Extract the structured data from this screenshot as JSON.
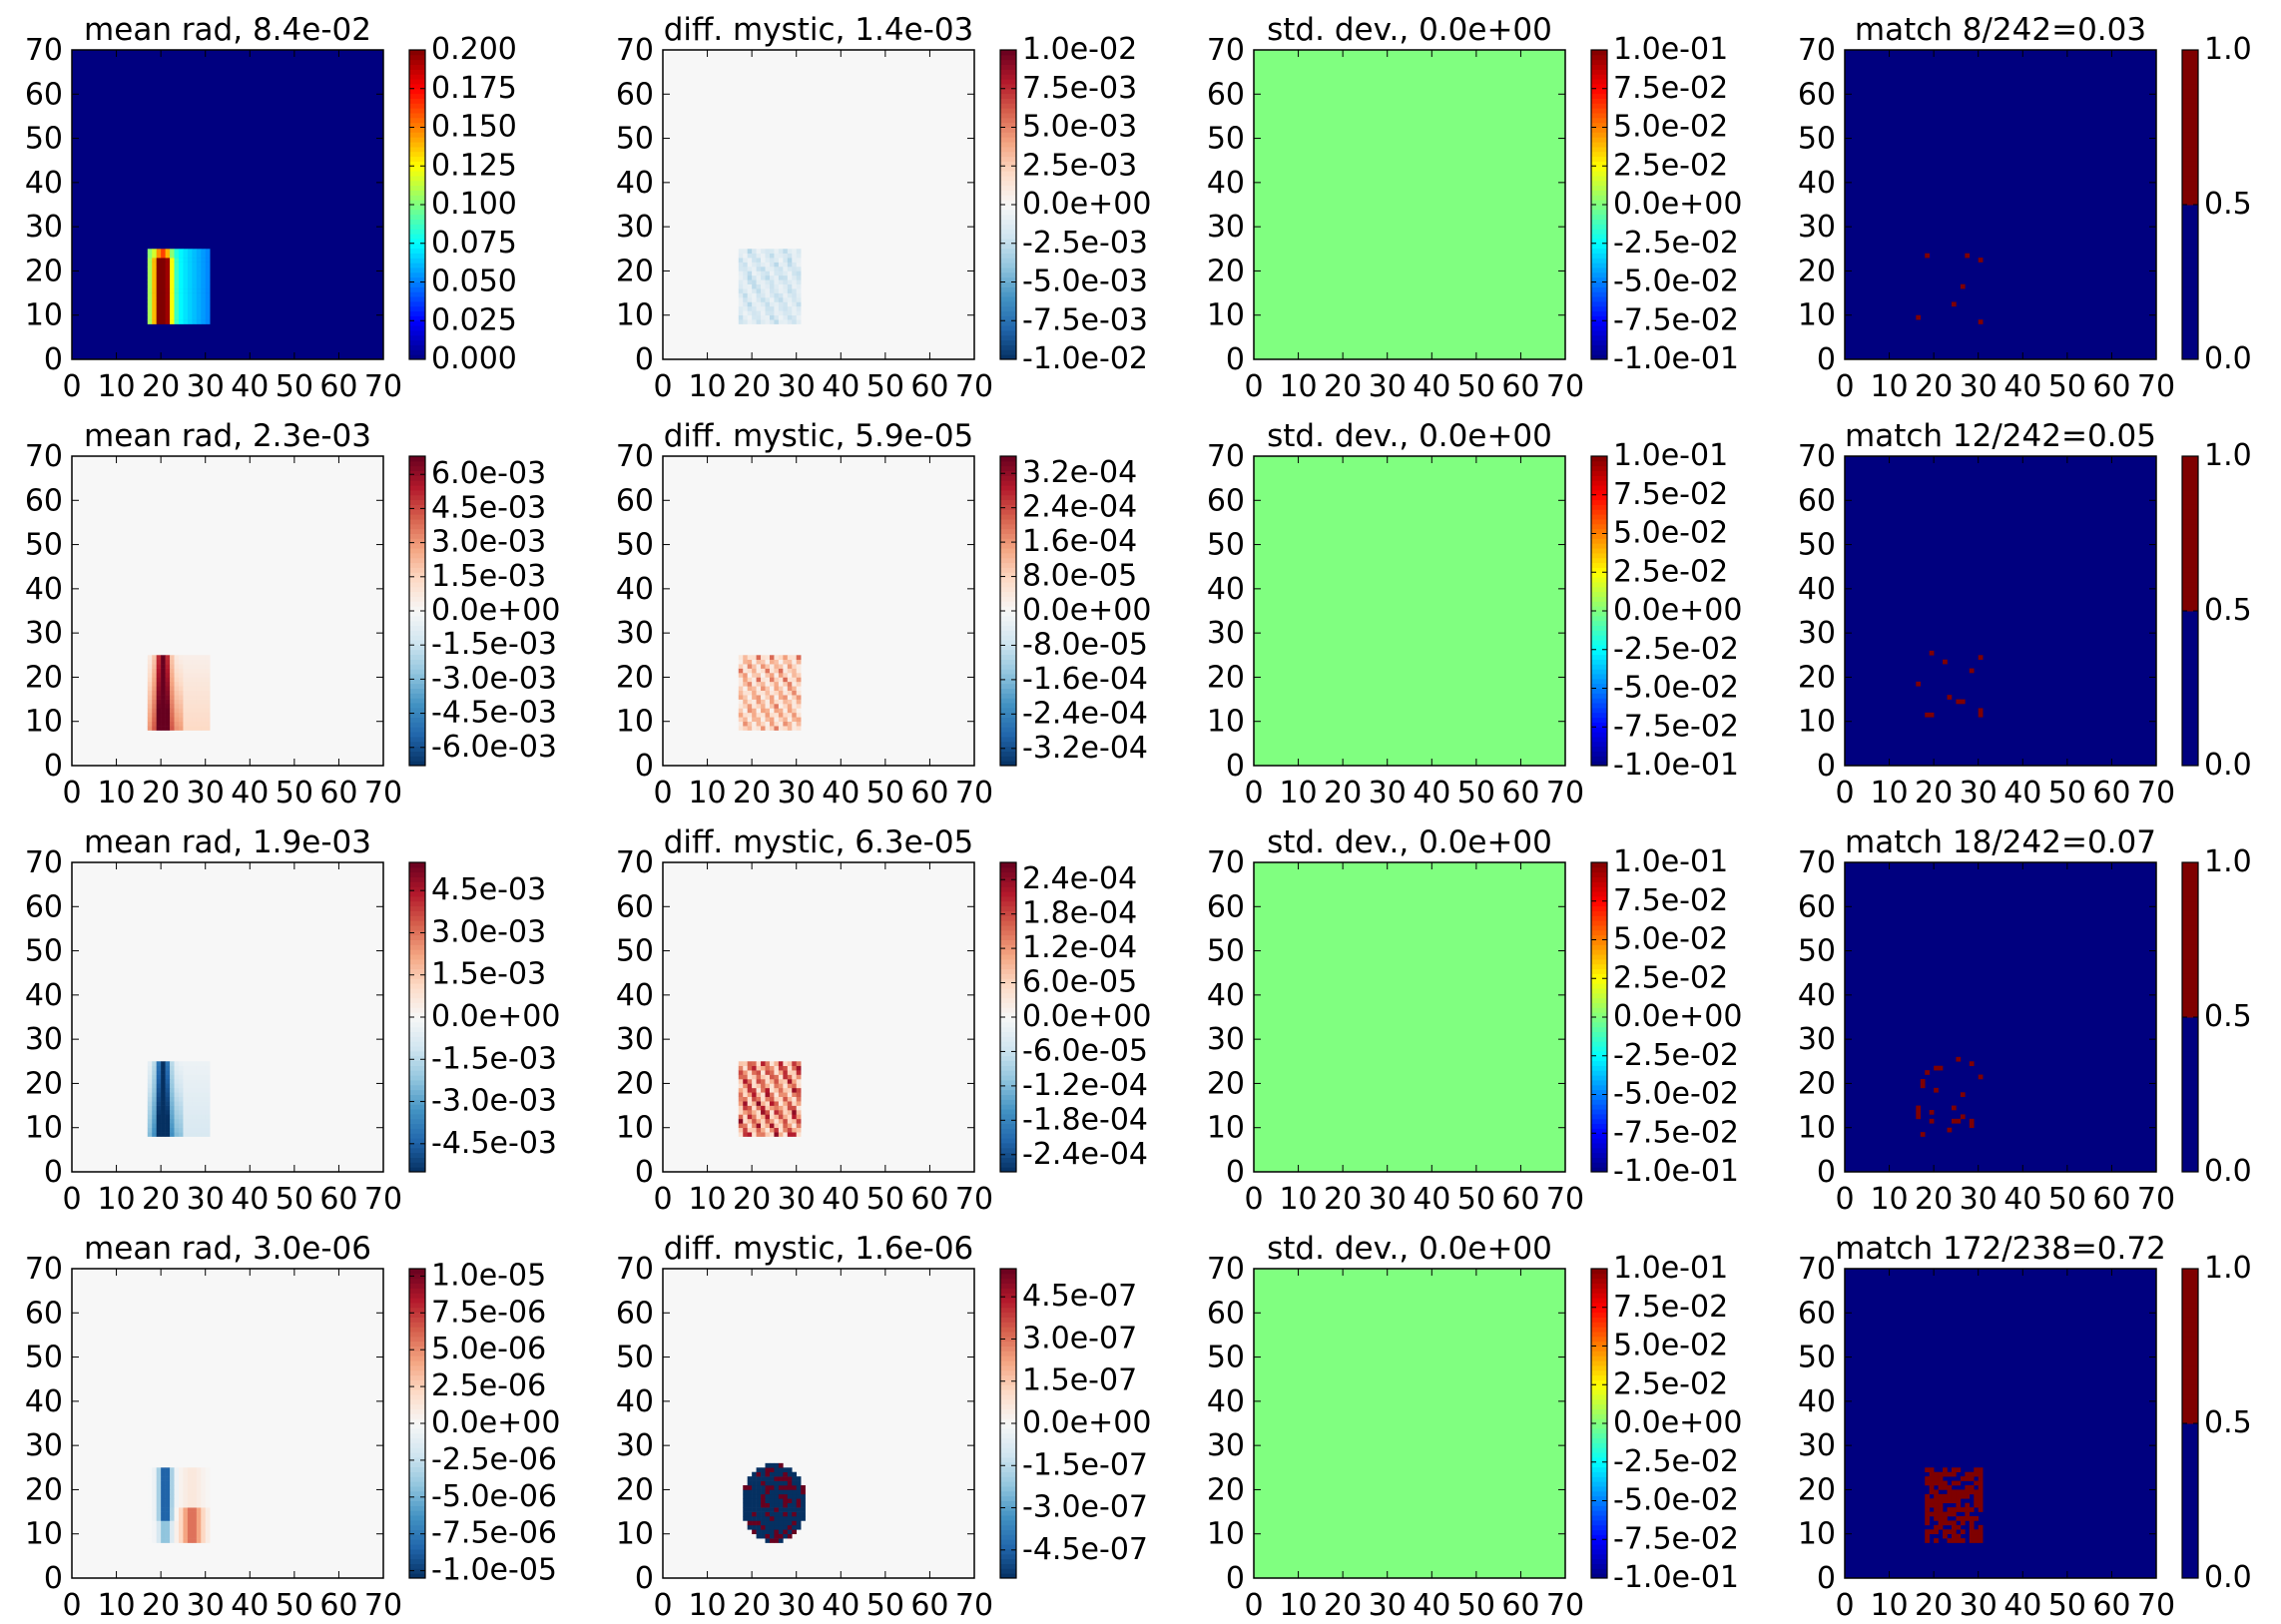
{
  "figure": {
    "panel_titles": [
      [
        "mean rad, 8.4e-02",
        "diff. mystic, 1.4e-03",
        "std. dev., 0.0e+00",
        "match 8/242=0.03"
      ],
      [
        "mean rad, 2.3e-03",
        "diff. mystic, 5.9e-05",
        "std. dev., 0.0e+00",
        "match 12/242=0.05"
      ],
      [
        "mean rad, 1.9e-03",
        "diff. mystic, 6.3e-05",
        "std. dev., 0.0e+00",
        "match 18/242=0.07"
      ],
      [
        "mean rad, 3.0e-06",
        "diff. mystic, 1.6e-06",
        "std. dev., 0.0e+00",
        "match 172/238=0.72"
      ]
    ]
  },
  "colors": {
    "jet_dark_blue": "#00007f",
    "jet_green": "#7fff7f",
    "jet_dark_red": "#7f0000",
    "rdbu_background": "#f7f7f7"
  },
  "chart_data": [
    {
      "type": "heatmap",
      "row": 0,
      "col": 0,
      "title": "mean rad, 8.4e-02",
      "colormap": "jet",
      "xlim": [
        0,
        70
      ],
      "ylim": [
        0,
        70
      ],
      "xticks": [
        "0",
        "10",
        "20",
        "30",
        "40",
        "50",
        "60",
        "70"
      ],
      "yticks": [
        "0",
        "10",
        "20",
        "30",
        "40",
        "50",
        "60",
        "70"
      ],
      "colorbar_ticks": [
        "0.000",
        "0.025",
        "0.050",
        "0.075",
        "0.100",
        "0.125",
        "0.150",
        "0.175",
        "0.200"
      ],
      "clim": [
        0,
        0.2
      ]
    },
    {
      "type": "heatmap",
      "row": 0,
      "col": 1,
      "title": "diff. mystic, 1.4e-03",
      "colormap": "RdBu_r",
      "xlim": [
        0,
        70
      ],
      "ylim": [
        0,
        70
      ],
      "xticks": [
        "0",
        "10",
        "20",
        "30",
        "40",
        "50",
        "60",
        "70"
      ],
      "yticks": [
        "0",
        "10",
        "20",
        "30",
        "40",
        "50",
        "60",
        "70"
      ],
      "colorbar_ticks": [
        "-1.0e-02",
        "-7.5e-03",
        "-5.0e-03",
        "-2.5e-03",
        "0.0e+00",
        "2.5e-03",
        "5.0e-03",
        "7.5e-03",
        "1.0e-02"
      ],
      "clim": [
        -0.01,
        0.01
      ]
    },
    {
      "type": "heatmap",
      "row": 0,
      "col": 2,
      "title": "std. dev., 0.0e+00",
      "colormap": "jet",
      "xlim": [
        0,
        70
      ],
      "ylim": [
        0,
        70
      ],
      "xticks": [
        "0",
        "10",
        "20",
        "30",
        "40",
        "50",
        "60",
        "70"
      ],
      "yticks": [
        "0",
        "10",
        "20",
        "30",
        "40",
        "50",
        "60",
        "70"
      ],
      "colorbar_ticks": [
        "-1.0e-01",
        "-7.5e-02",
        "-5.0e-02",
        "-2.5e-02",
        "0.0e+00",
        "2.5e-02",
        "5.0e-02",
        "7.5e-02",
        "1.0e-01"
      ],
      "clim": [
        -0.1,
        0.1
      ]
    },
    {
      "type": "heatmap",
      "row": 0,
      "col": 3,
      "title": "match 8/242=0.03",
      "colormap": "binary_jet",
      "xlim": [
        0,
        70
      ],
      "ylim": [
        0,
        70
      ],
      "xticks": [
        "0",
        "10",
        "20",
        "30",
        "40",
        "50",
        "60",
        "70"
      ],
      "yticks": [
        "0",
        "10",
        "20",
        "30",
        "40",
        "50",
        "60",
        "70"
      ],
      "colorbar_ticks": [
        "0.0",
        "0.5",
        "1.0"
      ],
      "clim": [
        0,
        1
      ]
    },
    {
      "type": "heatmap",
      "row": 1,
      "col": 0,
      "title": "mean rad, 2.3e-03",
      "colormap": "RdBu_r",
      "xlim": [
        0,
        70
      ],
      "ylim": [
        0,
        70
      ],
      "xticks": [
        "0",
        "10",
        "20",
        "30",
        "40",
        "50",
        "60",
        "70"
      ],
      "yticks": [
        "0",
        "10",
        "20",
        "30",
        "40",
        "50",
        "60",
        "70"
      ],
      "colorbar_ticks": [
        "-6.0e-03",
        "-4.5e-03",
        "-3.0e-03",
        "-1.5e-03",
        "0.0e+00",
        "1.5e-03",
        "3.0e-03",
        "4.5e-03",
        "6.0e-03"
      ],
      "clim": [
        -0.0068,
        0.0068
      ]
    },
    {
      "type": "heatmap",
      "row": 1,
      "col": 1,
      "title": "diff. mystic, 5.9e-05",
      "colormap": "RdBu_r",
      "xlim": [
        0,
        70
      ],
      "ylim": [
        0,
        70
      ],
      "xticks": [
        "0",
        "10",
        "20",
        "30",
        "40",
        "50",
        "60",
        "70"
      ],
      "yticks": [
        "0",
        "10",
        "20",
        "30",
        "40",
        "50",
        "60",
        "70"
      ],
      "colorbar_ticks": [
        "-3.2e-04",
        "-2.4e-04",
        "-1.6e-04",
        "-8.0e-05",
        "0.0e+00",
        "8.0e-05",
        "1.6e-04",
        "2.4e-04",
        "3.2e-04"
      ],
      "clim": [
        -0.00036,
        0.00036
      ]
    },
    {
      "type": "heatmap",
      "row": 1,
      "col": 2,
      "title": "std. dev., 0.0e+00",
      "colormap": "jet",
      "xlim": [
        0,
        70
      ],
      "ylim": [
        0,
        70
      ],
      "xticks": [
        "0",
        "10",
        "20",
        "30",
        "40",
        "50",
        "60",
        "70"
      ],
      "yticks": [
        "0",
        "10",
        "20",
        "30",
        "40",
        "50",
        "60",
        "70"
      ],
      "colorbar_ticks": [
        "-1.0e-01",
        "-7.5e-02",
        "-5.0e-02",
        "-2.5e-02",
        "0.0e+00",
        "2.5e-02",
        "5.0e-02",
        "7.5e-02",
        "1.0e-01"
      ],
      "clim": [
        -0.1,
        0.1
      ]
    },
    {
      "type": "heatmap",
      "row": 1,
      "col": 3,
      "title": "match 12/242=0.05",
      "colormap": "binary_jet",
      "xlim": [
        0,
        70
      ],
      "ylim": [
        0,
        70
      ],
      "xticks": [
        "0",
        "10",
        "20",
        "30",
        "40",
        "50",
        "60",
        "70"
      ],
      "yticks": [
        "0",
        "10",
        "20",
        "30",
        "40",
        "50",
        "60",
        "70"
      ],
      "colorbar_ticks": [
        "0.0",
        "0.5",
        "1.0"
      ],
      "clim": [
        0,
        1
      ]
    },
    {
      "type": "heatmap",
      "row": 2,
      "col": 0,
      "title": "mean rad, 1.9e-03",
      "colormap": "RdBu_r",
      "xlim": [
        0,
        70
      ],
      "ylim": [
        0,
        70
      ],
      "xticks": [
        "0",
        "10",
        "20",
        "30",
        "40",
        "50",
        "60",
        "70"
      ],
      "yticks": [
        "0",
        "10",
        "20",
        "30",
        "40",
        "50",
        "60",
        "70"
      ],
      "colorbar_ticks": [
        "-4.5e-03",
        "-3.0e-03",
        "-1.5e-03",
        "0.0e+00",
        "1.5e-03",
        "3.0e-03",
        "4.5e-03"
      ],
      "clim": [
        -0.0055,
        0.0055
      ]
    },
    {
      "type": "heatmap",
      "row": 2,
      "col": 1,
      "title": "diff. mystic, 6.3e-05",
      "colormap": "RdBu_r",
      "xlim": [
        0,
        70
      ],
      "ylim": [
        0,
        70
      ],
      "xticks": [
        "0",
        "10",
        "20",
        "30",
        "40",
        "50",
        "60",
        "70"
      ],
      "yticks": [
        "0",
        "10",
        "20",
        "30",
        "40",
        "50",
        "60",
        "70"
      ],
      "colorbar_ticks": [
        "-2.4e-04",
        "-1.8e-04",
        "-1.2e-04",
        "-6.0e-05",
        "0.0e+00",
        "6.0e-05",
        "1.2e-04",
        "1.8e-04",
        "2.4e-04"
      ],
      "clim": [
        -0.00027,
        0.00027
      ]
    },
    {
      "type": "heatmap",
      "row": 2,
      "col": 2,
      "title": "std. dev., 0.0e+00",
      "colormap": "jet",
      "xlim": [
        0,
        70
      ],
      "ylim": [
        0,
        70
      ],
      "xticks": [
        "0",
        "10",
        "20",
        "30",
        "40",
        "50",
        "60",
        "70"
      ],
      "yticks": [
        "0",
        "10",
        "20",
        "30",
        "40",
        "50",
        "60",
        "70"
      ],
      "colorbar_ticks": [
        "-1.0e-01",
        "-7.5e-02",
        "-5.0e-02",
        "-2.5e-02",
        "0.0e+00",
        "2.5e-02",
        "5.0e-02",
        "7.5e-02",
        "1.0e-01"
      ],
      "clim": [
        -0.1,
        0.1
      ]
    },
    {
      "type": "heatmap",
      "row": 2,
      "col": 3,
      "title": "match 18/242=0.07",
      "colormap": "binary_jet",
      "xlim": [
        0,
        70
      ],
      "ylim": [
        0,
        70
      ],
      "xticks": [
        "0",
        "10",
        "20",
        "30",
        "40",
        "50",
        "60",
        "70"
      ],
      "yticks": [
        "0",
        "10",
        "20",
        "30",
        "40",
        "50",
        "60",
        "70"
      ],
      "colorbar_ticks": [
        "0.0",
        "0.5",
        "1.0"
      ],
      "clim": [
        0,
        1
      ]
    },
    {
      "type": "heatmap",
      "row": 3,
      "col": 0,
      "title": "mean rad, 3.0e-06",
      "colormap": "RdBu_r",
      "xlim": [
        0,
        70
      ],
      "ylim": [
        0,
        70
      ],
      "xticks": [
        "0",
        "10",
        "20",
        "30",
        "40",
        "50",
        "60",
        "70"
      ],
      "yticks": [
        "0",
        "10",
        "20",
        "30",
        "40",
        "50",
        "60",
        "70"
      ],
      "colorbar_ticks": [
        "-1.0e-05",
        "-7.5e-06",
        "-5.0e-06",
        "-2.5e-06",
        "0.0e+00",
        "2.5e-06",
        "5.0e-06",
        "7.5e-06",
        "1.0e-05"
      ],
      "clim": [
        -1.05e-05,
        1.05e-05
      ]
    },
    {
      "type": "heatmap",
      "row": 3,
      "col": 1,
      "title": "diff. mystic, 1.6e-06",
      "colormap": "RdBu_r",
      "xlim": [
        0,
        70
      ],
      "ylim": [
        0,
        70
      ],
      "xticks": [
        "0",
        "10",
        "20",
        "30",
        "40",
        "50",
        "60",
        "70"
      ],
      "yticks": [
        "0",
        "10",
        "20",
        "30",
        "40",
        "50",
        "60",
        "70"
      ],
      "colorbar_ticks": [
        "-4.5e-07",
        "-3.0e-07",
        "-1.5e-07",
        "0.0e+00",
        "1.5e-07",
        "3.0e-07",
        "4.5e-07"
      ],
      "clim": [
        -5.5e-07,
        5.5e-07
      ]
    },
    {
      "type": "heatmap",
      "row": 3,
      "col": 2,
      "title": "std. dev., 0.0e+00",
      "colormap": "jet",
      "xlim": [
        0,
        70
      ],
      "ylim": [
        0,
        70
      ],
      "xticks": [
        "0",
        "10",
        "20",
        "30",
        "40",
        "50",
        "60",
        "70"
      ],
      "yticks": [
        "0",
        "10",
        "20",
        "30",
        "40",
        "50",
        "60",
        "70"
      ],
      "colorbar_ticks": [
        "-1.0e-01",
        "-7.5e-02",
        "-5.0e-02",
        "-2.5e-02",
        "0.0e+00",
        "2.5e-02",
        "5.0e-02",
        "7.5e-02",
        "1.0e-01"
      ],
      "clim": [
        -0.1,
        0.1
      ]
    },
    {
      "type": "heatmap",
      "row": 3,
      "col": 3,
      "title": "match 172/238=0.72",
      "colormap": "binary_jet",
      "xlim": [
        0,
        70
      ],
      "ylim": [
        0,
        70
      ],
      "xticks": [
        "0",
        "10",
        "20",
        "30",
        "40",
        "50",
        "60",
        "70"
      ],
      "yticks": [
        "0",
        "10",
        "20",
        "30",
        "40",
        "50",
        "60",
        "70"
      ],
      "colorbar_ticks": [
        "0.0",
        "0.5",
        "1.0"
      ],
      "clim": [
        0,
        1
      ]
    }
  ]
}
